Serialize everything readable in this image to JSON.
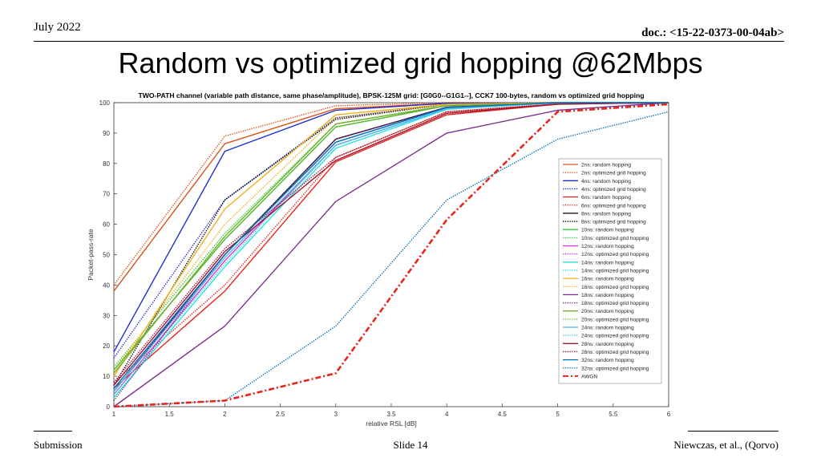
{
  "header": {
    "date": "July 2022",
    "doc": "doc.: <15-22-0373-00-04ab>",
    "title": "Random vs optimized grid hopping @62Mbps"
  },
  "footer": {
    "left": "Submission",
    "center": "Slide 14",
    "right": "Niewczas, et al., (Qorvo)"
  },
  "colors": {
    "axis": "#333333",
    "grid": "#e0e0e0"
  },
  "chart_data": {
    "type": "line",
    "title": "TWO-PATH channel (variable path distance, same phase/amplitude), BPSK-125M grid: [G0G0--G1G1--], CCK7 100-bytes, random vs optimized grid hopping",
    "xlabel": "relative RSL [dB]",
    "ylabel": "Packet-pass-rate",
    "xlim": [
      1,
      6
    ],
    "ylim": [
      0,
      100
    ],
    "xticks": [
      1,
      1.5,
      2,
      2.5,
      3,
      3.5,
      4,
      4.5,
      5,
      5.5,
      6
    ],
    "yticks": [
      0,
      10,
      20,
      30,
      40,
      50,
      60,
      70,
      80,
      90,
      100
    ],
    "grid": false,
    "legend_position": "right",
    "x": [
      1,
      2,
      3,
      4,
      5,
      6
    ],
    "series": [
      {
        "name": "2ns: random hopping",
        "color": "#d95319",
        "style": "solid",
        "values": [
          38,
          86.5,
          98,
          99.8,
          100,
          100
        ]
      },
      {
        "name": "2ns: optimized grid hopping",
        "color": "#d95319",
        "style": "dotted",
        "values": [
          40,
          89,
          99,
          100,
          100,
          100
        ]
      },
      {
        "name": "4ns: random hopping",
        "color": "#1f2fd0",
        "style": "solid",
        "values": [
          18,
          84,
          97.5,
          99.8,
          100,
          100
        ]
      },
      {
        "name": "4ns: optimized grid hopping",
        "color": "#1f2fd0",
        "style": "dotted",
        "values": [
          16,
          68,
          95,
          99.5,
          100,
          100
        ]
      },
      {
        "name": "6ns: random hopping",
        "color": "#e8241a",
        "style": "solid",
        "values": [
          6,
          38,
          80.5,
          96,
          99.5,
          100
        ]
      },
      {
        "name": "6ns: optimized grid hopping",
        "color": "#e8241a",
        "style": "dotted",
        "values": [
          8,
          40,
          82,
          97,
          99.6,
          100
        ]
      },
      {
        "name": "8ns: random hopping",
        "color": "#000000",
        "style": "solid",
        "values": [
          5,
          50,
          88,
          98.5,
          100,
          100
        ]
      },
      {
        "name": "8ns: optimized grid hopping",
        "color": "#000000",
        "style": "dotted",
        "values": [
          7,
          68,
          94.5,
          99.5,
          100,
          100
        ]
      },
      {
        "name": "10ns: random hopping",
        "color": "#2ecc2e",
        "style": "solid",
        "values": [
          12,
          55,
          92,
          99,
          100,
          100
        ]
      },
      {
        "name": "10ns: optimized grid hopping",
        "color": "#2ecc2e",
        "style": "dotted",
        "values": [
          13,
          57,
          93,
          99.2,
          100,
          100
        ]
      },
      {
        "name": "12ns: random hopping",
        "color": "#e02ee0",
        "style": "solid",
        "values": [
          4,
          48,
          86,
          98,
          100,
          100
        ]
      },
      {
        "name": "12ns: optimized grid hopping",
        "color": "#e02ee0",
        "style": "dotted",
        "values": [
          5,
          50,
          87,
          98.3,
          100,
          100
        ]
      },
      {
        "name": "14ns: random hopping",
        "color": "#2ee0e0",
        "style": "solid",
        "values": [
          3,
          46,
          85,
          97.8,
          100,
          100
        ]
      },
      {
        "name": "14ns: optimized grid hopping",
        "color": "#2ee0e0",
        "style": "dotted",
        "values": [
          4,
          47,
          86,
          98,
          100,
          100
        ]
      },
      {
        "name": "16ns: random hopping",
        "color": "#f0b020",
        "style": "solid",
        "values": [
          10,
          65,
          96,
          99.5,
          100,
          100
        ]
      },
      {
        "name": "16ns: optimized grid hopping",
        "color": "#f0b020",
        "style": "dotted",
        "values": [
          12,
          60,
          95,
          99.4,
          100,
          100
        ]
      },
      {
        "name": "18ns: random hopping",
        "color": "#7e2f8e",
        "style": "solid",
        "values": [
          0,
          26.5,
          67.5,
          90,
          97.5,
          100
        ]
      },
      {
        "name": "18ns: optimized grid hopping",
        "color": "#7e2f8e",
        "style": "dotted",
        "values": [
          2,
          50,
          88,
          98.5,
          100,
          100
        ]
      },
      {
        "name": "20ns: random hopping",
        "color": "#77ac30",
        "style": "solid",
        "values": [
          11,
          56,
          93,
          99,
          100,
          100
        ]
      },
      {
        "name": "20ns: optimized grid hopping",
        "color": "#77ac30",
        "style": "dotted",
        "values": [
          12,
          55,
          92,
          99,
          100,
          100
        ]
      },
      {
        "name": "24ns: random hopping",
        "color": "#4dbeee",
        "style": "solid",
        "values": [
          5,
          49,
          86,
          98,
          100,
          100
        ]
      },
      {
        "name": "24ns: optimized grid hopping",
        "color": "#4dbeee",
        "style": "dotted",
        "values": [
          6,
          50,
          87,
          98.2,
          100,
          100
        ]
      },
      {
        "name": "28ns: random hopping",
        "color": "#a2142f",
        "style": "solid",
        "values": [
          7,
          51,
          81,
          96.5,
          99.5,
          100
        ]
      },
      {
        "name": "28ns: optimized grid hopping",
        "color": "#a2142f",
        "style": "dotted",
        "values": [
          8,
          52,
          82,
          97,
          99.6,
          100
        ]
      },
      {
        "name": "32ns: random hopping",
        "color": "#0072bd",
        "style": "solid",
        "values": [
          6,
          50,
          87,
          98.4,
          100,
          100
        ]
      },
      {
        "name": "32ns: optimized grid hopping",
        "color": "#0072bd",
        "style": "dotted",
        "values": [
          0,
          2,
          26.5,
          68,
          88,
          97
        ]
      },
      {
        "name": "AWGN",
        "color": "#e8241a",
        "style": "dashdot",
        "values": [
          0,
          2,
          11,
          61.5,
          97,
          99.5
        ]
      }
    ]
  }
}
